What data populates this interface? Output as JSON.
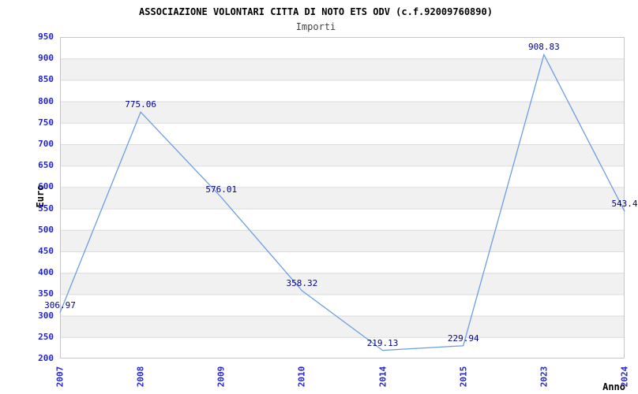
{
  "header": {
    "title": "ASSOCIAZIONE VOLONTARI CITTA DI NOTO ETS ODV (c.f.92009760890)",
    "subtitle": "Importi"
  },
  "chart_data": {
    "type": "line",
    "title": "ASSOCIAZIONE VOLONTARI CITTA DI NOTO ETS ODV (c.f.92009760890)",
    "subtitle": "Importi",
    "xlabel": "Anno",
    "ylabel": "Euro",
    "categories": [
      "2007",
      "2008",
      "2009",
      "2010",
      "2014",
      "2015",
      "2023",
      "2024"
    ],
    "values": [
      306.97,
      775.06,
      576.01,
      358.32,
      219.13,
      229.94,
      908.83,
      543.4
    ],
    "point_labels": [
      "306.97",
      "775.06",
      "576.01",
      "358.32",
      "219.13",
      "229.94",
      "908.83",
      "543.4"
    ],
    "ylim": [
      200,
      950
    ],
    "ytick_step": 50,
    "grid": true,
    "banded_background": true,
    "legend_position": "none",
    "colors": {
      "line": "#6c9ee3",
      "value_label": "#00008b",
      "tick_label": "#2323cf",
      "band": "#f1f1f1",
      "gridline": "#dcdcdc",
      "plot_border": "#c5c5c5",
      "title": "#000000",
      "subtitle": "#444444"
    }
  }
}
